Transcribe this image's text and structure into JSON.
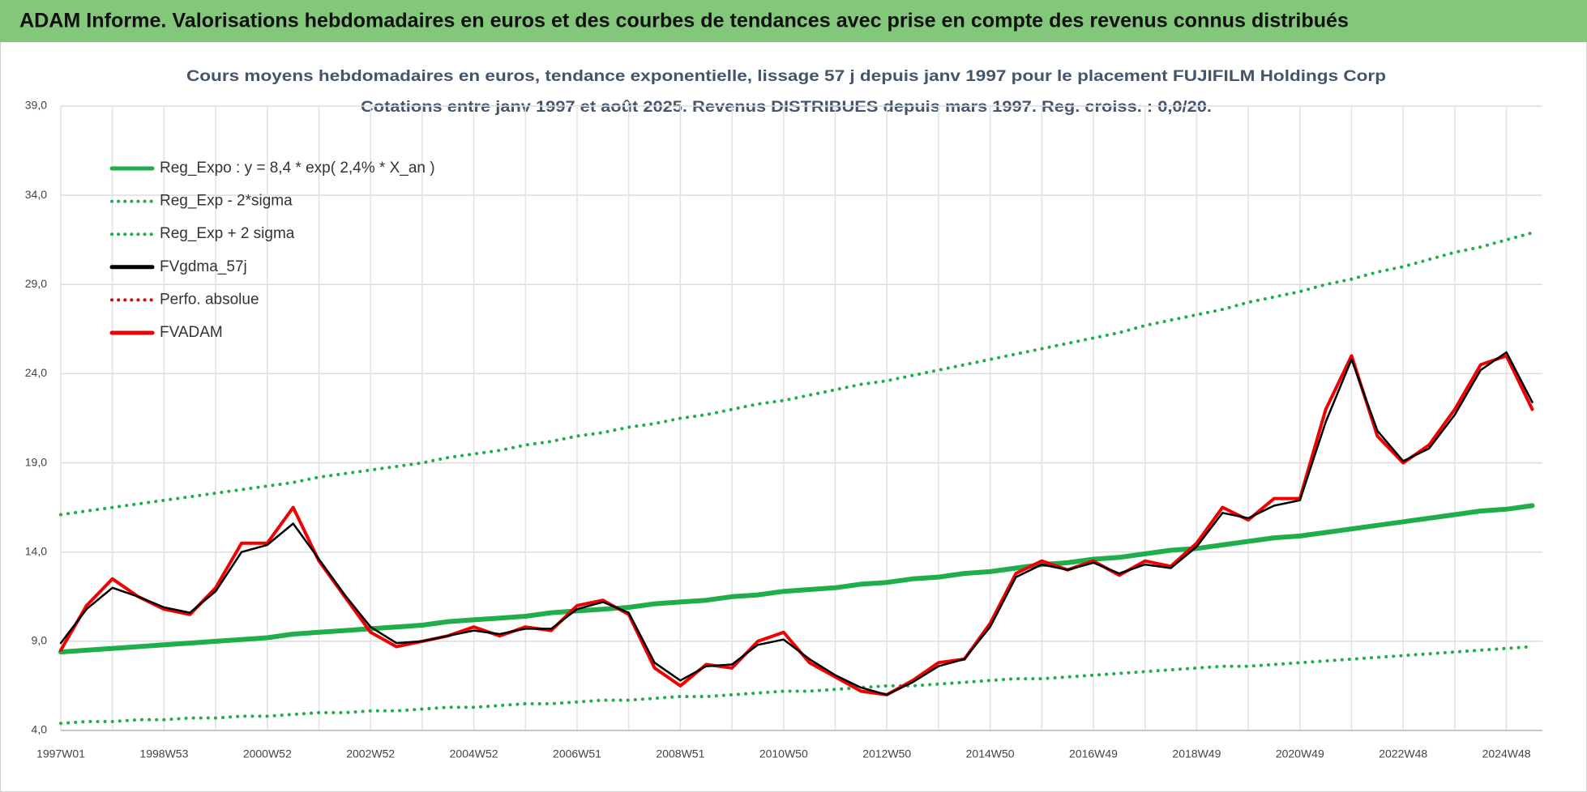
{
  "banner": "ADAM Informe. Valorisations hebdomadaires en euros et des courbes de tendances avec prise en compte des revenus connus distribués",
  "chart_data": {
    "type": "line",
    "title": "Cours moyens hebdomadaires en euros, tendance exponentielle, lissage 57 j depuis janv 1997 pour le placement FUJIFILM Holdings Corp",
    "subtitle": "Cotations entre janv 1997 et août 2025. Revenus DISTRIBUES depuis mars 1997. Reg. croiss. : 0,0/20.",
    "categories": [
      "1997W01",
      null,
      null,
      null,
      "1998W53",
      null,
      null,
      null,
      "2000W52",
      null,
      null,
      null,
      "2002W52",
      null,
      null,
      null,
      "2004W52",
      null,
      null,
      null,
      "2006W51",
      null,
      null,
      null,
      "2008W51",
      null,
      null,
      null,
      "2010W50",
      null,
      null,
      null,
      "2012W50",
      null,
      null,
      null,
      "2014W50",
      null,
      null,
      null,
      "2016W49",
      null,
      null,
      null,
      "2018W49",
      null,
      null,
      null,
      "2020W49",
      null,
      null,
      null,
      "2022W48",
      null,
      null,
      null,
      "2024W48",
      null
    ],
    "ylim": [
      4,
      39
    ],
    "yticks": [
      {
        "value": 4,
        "label": "4,0"
      },
      {
        "value": 9,
        "label": "9,0"
      },
      {
        "value": 14,
        "label": "14,0"
      },
      {
        "value": 19,
        "label": "19,0"
      },
      {
        "value": 24,
        "label": "24,0"
      },
      {
        "value": 29,
        "label": "29,0"
      },
      {
        "value": 34,
        "label": "34,0"
      },
      {
        "value": 39,
        "label": "39,0"
      }
    ],
    "grid": true,
    "legend": "top-left",
    "series": [
      {
        "name": "Reg_Expo : y = 8,4 * exp( 2,4% *  X_an )",
        "color": "#1fae4b",
        "style": "solid",
        "values": [
          8.4,
          8.5,
          8.6,
          8.7,
          8.8,
          8.9,
          9.0,
          9.1,
          9.2,
          9.4,
          9.5,
          9.6,
          9.7,
          9.8,
          9.9,
          10.1,
          10.2,
          10.3,
          10.4,
          10.6,
          10.7,
          10.8,
          10.9,
          11.1,
          11.2,
          11.3,
          11.5,
          11.6,
          11.8,
          11.9,
          12.0,
          12.2,
          12.3,
          12.5,
          12.6,
          12.8,
          12.9,
          13.1,
          13.3,
          13.4,
          13.6,
          13.7,
          13.9,
          14.1,
          14.2,
          14.4,
          14.6,
          14.8,
          14.9,
          15.1,
          15.3,
          15.5,
          15.7,
          15.9,
          16.1,
          16.3,
          16.4,
          16.6
        ]
      },
      {
        "name": "Reg_Exp - 2*sigma",
        "color": "#1fae4b",
        "style": "dotted",
        "values": [
          4.4,
          4.5,
          4.5,
          4.6,
          4.6,
          4.7,
          4.7,
          4.8,
          4.8,
          4.9,
          5.0,
          5.0,
          5.1,
          5.1,
          5.2,
          5.3,
          5.3,
          5.4,
          5.5,
          5.5,
          5.6,
          5.7,
          5.7,
          5.8,
          5.9,
          5.9,
          6.0,
          6.1,
          6.2,
          6.2,
          6.3,
          6.4,
          6.5,
          6.5,
          6.6,
          6.7,
          6.8,
          6.9,
          6.9,
          7.0,
          7.1,
          7.2,
          7.3,
          7.4,
          7.5,
          7.6,
          7.6,
          7.7,
          7.8,
          7.9,
          8.0,
          8.1,
          8.2,
          8.3,
          8.4,
          8.5,
          8.6,
          8.7
        ]
      },
      {
        "name": "Reg_Exp + 2 sigma",
        "color": "#1fae4b",
        "style": "dotted",
        "values": [
          16.1,
          16.3,
          16.5,
          16.7,
          16.9,
          17.1,
          17.3,
          17.5,
          17.7,
          17.9,
          18.2,
          18.4,
          18.6,
          18.8,
          19.0,
          19.3,
          19.5,
          19.7,
          20.0,
          20.2,
          20.5,
          20.7,
          21.0,
          21.2,
          21.5,
          21.7,
          22.0,
          22.3,
          22.5,
          22.8,
          23.1,
          23.4,
          23.6,
          23.9,
          24.2,
          24.5,
          24.8,
          25.1,
          25.4,
          25.7,
          26.0,
          26.3,
          26.7,
          27.0,
          27.3,
          27.6,
          28.0,
          28.3,
          28.6,
          29.0,
          29.3,
          29.7,
          30.0,
          30.4,
          30.8,
          31.1,
          31.5,
          31.9
        ]
      },
      {
        "name": "FVgdma_57j",
        "color": "#000000",
        "style": "solid",
        "values": [
          8.9,
          10.8,
          12.0,
          11.5,
          10.9,
          10.6,
          11.8,
          14.0,
          14.4,
          15.6,
          13.6,
          11.6,
          9.8,
          8.9,
          9.0,
          9.3,
          9.6,
          9.4,
          9.7,
          9.7,
          10.8,
          11.2,
          10.6,
          7.8,
          6.8,
          7.6,
          7.7,
          8.8,
          9.1,
          8.0,
          7.1,
          6.4,
          6.0,
          6.7,
          7.6,
          8.0,
          9.8,
          12.6,
          13.3,
          13.0,
          13.4,
          12.8,
          13.3,
          13.1,
          14.3,
          16.2,
          15.9,
          16.6,
          16.9,
          21.3,
          24.8,
          20.8,
          19.1,
          19.8,
          21.7,
          24.2,
          25.2,
          22.4
        ]
      },
      {
        "name": "Perfo. absolue",
        "color": "#e00000",
        "style": "dotted"
      },
      {
        "name": "FVADAM",
        "color": "#f00000",
        "style": "solid",
        "values": [
          8.5,
          11.0,
          12.5,
          11.5,
          10.8,
          10.5,
          12.0,
          14.5,
          14.5,
          16.5,
          13.5,
          11.5,
          9.5,
          8.7,
          9.0,
          9.3,
          9.8,
          9.3,
          9.8,
          9.6,
          11.0,
          11.3,
          10.5,
          7.5,
          6.5,
          7.7,
          7.5,
          9.0,
          9.5,
          7.8,
          7.0,
          6.2,
          6.0,
          6.8,
          7.8,
          8.0,
          10.0,
          12.8,
          13.5,
          13.0,
          13.5,
          12.7,
          13.5,
          13.2,
          14.5,
          16.5,
          15.8,
          17.0,
          17.0,
          22.0,
          25.0,
          20.5,
          19.0,
          20.0,
          22.0,
          24.5,
          25.0,
          22.0
        ]
      }
    ]
  }
}
